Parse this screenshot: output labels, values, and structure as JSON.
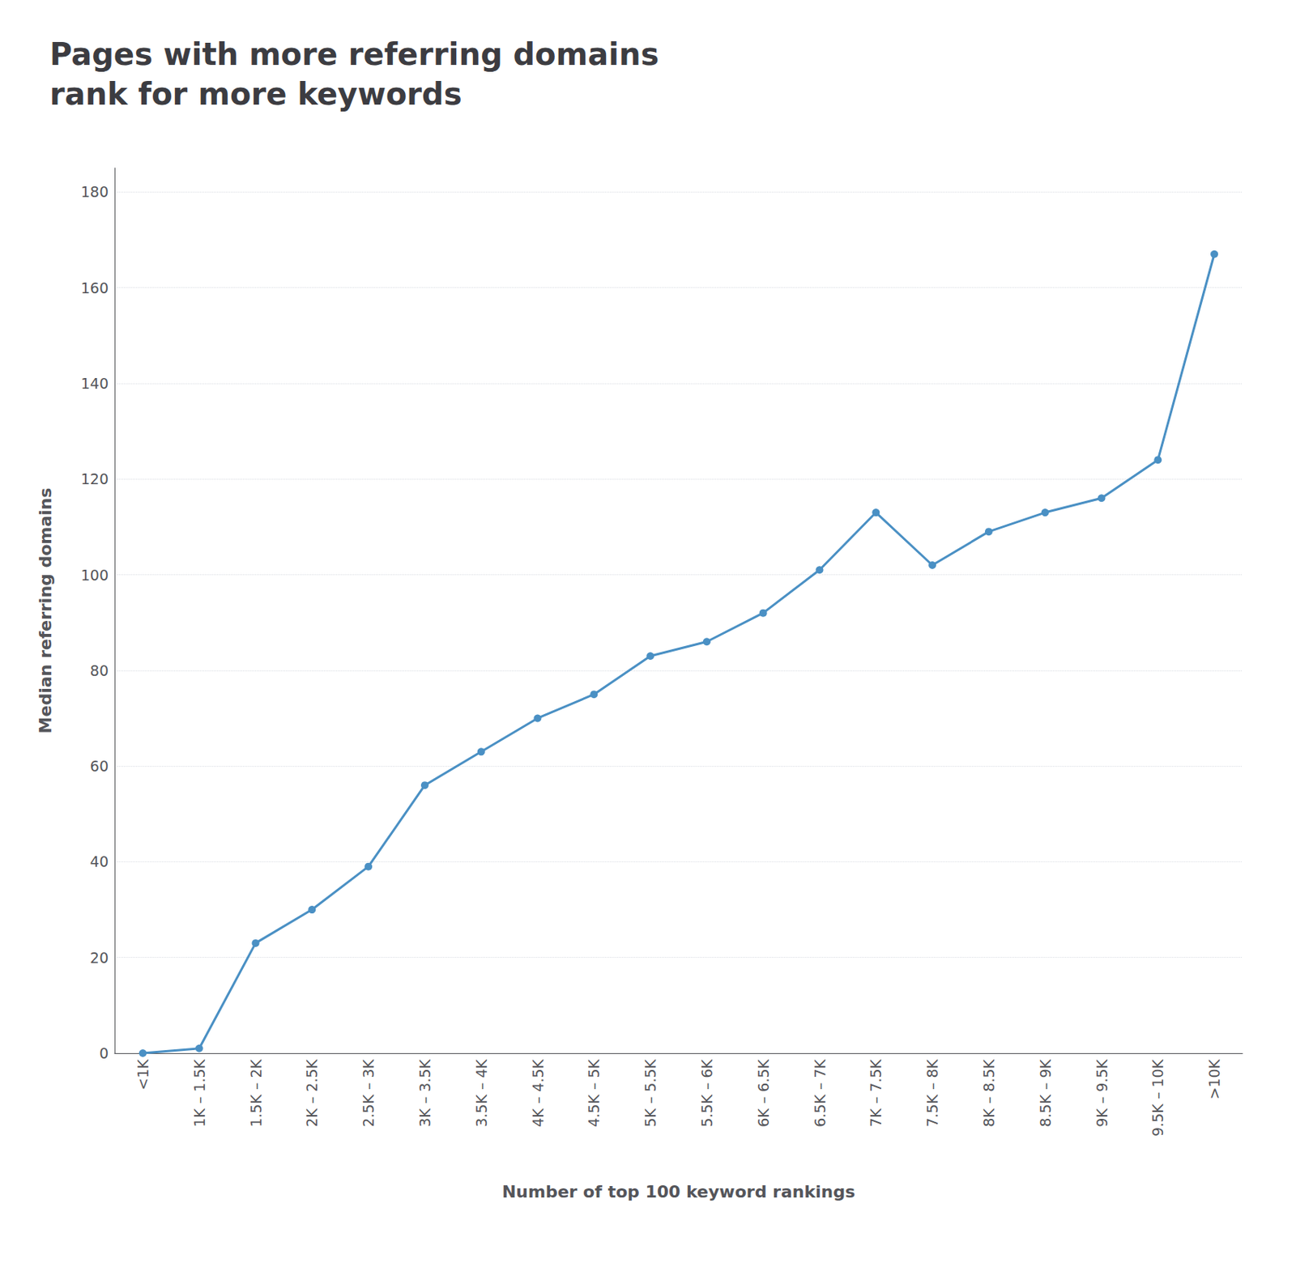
{
  "chart_data": {
    "type": "line",
    "title": "Pages with more referring domains\nrank for more keywords",
    "xlabel": "Number of top 100 keyword rankings",
    "ylabel": "Median referring domains",
    "categories": [
      "<1K",
      "1K – 1.5K",
      "1.5K – 2K",
      "2K – 2.5K",
      "2.5K – 3K",
      "3K – 3.5K",
      "3.5K – 4K",
      "4K – 4.5K",
      "4.5K – 5K",
      "5K – 5.5K",
      "5.5K – 6K",
      "6K – 6.5K",
      "6.5K – 7K",
      "7K – 7.5K",
      "7.5K – 8K",
      "8K – 8.5K",
      "8.5K – 9K",
      "9K – 9.5K",
      "9.5K – 10K",
      ">10K"
    ],
    "values": [
      0,
      1,
      23,
      30,
      39,
      56,
      63,
      70,
      75,
      83,
      86,
      92,
      101,
      113,
      102,
      109,
      113,
      116,
      124,
      167
    ],
    "color": "#4a90c4",
    "marker": "circle",
    "ylim": [
      0,
      185
    ],
    "yticks": [
      0,
      20,
      40,
      60,
      80,
      100,
      120,
      140,
      160,
      180
    ],
    "grid": true
  }
}
